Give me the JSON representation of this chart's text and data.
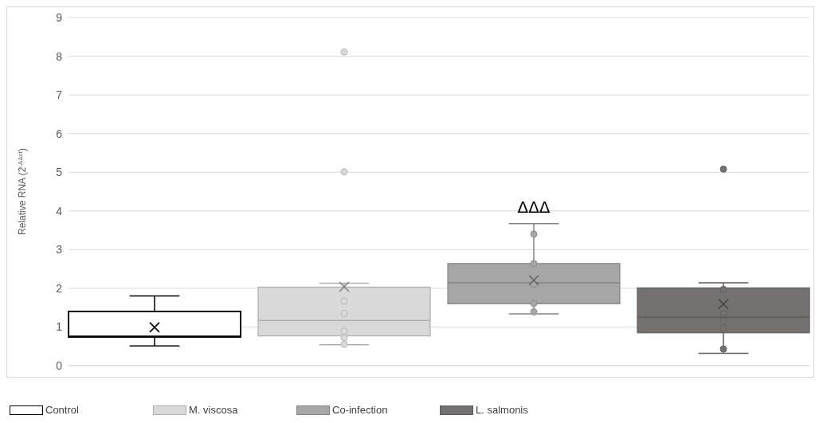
{
  "chart_data": {
    "type": "box",
    "ylabel": "Relative RNA (2$^{-ΔΔct}$)",
    "categories": [
      null
    ],
    "series": [
      {
        "name": "Control",
        "color": "#ffffff",
        "boxes": [
          {
            "low": 0.51,
            "q1": 0.74,
            "median": 0.76,
            "q3": 1.4,
            "high": 1.8,
            "mean": 0.99
          }
        ]
      },
      {
        "name": "M. viscosa",
        "color": "#d9d9d9",
        "boxes": [
          {
            "low": 0.54,
            "q1": 0.77,
            "median": 1.17,
            "q3": 2.03,
            "high": 2.13,
            "mean": 2.04,
            "outliers": [
              8.11,
              5.01,
              1.67,
              1.35,
              0.89,
              0.72,
              0.55
            ]
          }
        ]
      },
      {
        "name": "Co-infection",
        "color": "#a6a6a6",
        "boxes": [
          {
            "low": 1.34,
            "q1": 1.6,
            "median": 2.14,
            "q3": 2.64,
            "high": 3.67,
            "mean": 2.21,
            "outliers": [
              3.4,
              2.64,
              2.1,
              1.61,
              1.39
            ]
          }
        ]
      },
      {
        "name": "L. salmonis",
        "color": "#767171",
        "boxes": [
          {
            "low": 0.32,
            "q1": 0.85,
            "median": 1.25,
            "q3": 2.01,
            "high": 2.14,
            "mean": 1.59,
            "outliers": [
              5.08,
              1.97,
              1.35,
              1.16,
              0.98,
              0.43
            ]
          }
        ]
      }
    ],
    "annotations": [
      "ΔΔΔ"
    ],
    "ylim": [
      0,
      9
    ],
    "yticks": [
      0,
      1,
      2,
      3,
      4,
      5,
      6,
      7,
      8,
      9
    ],
    "grid": "y",
    "tick_labels": "y",
    "legend": "bottom left"
  }
}
